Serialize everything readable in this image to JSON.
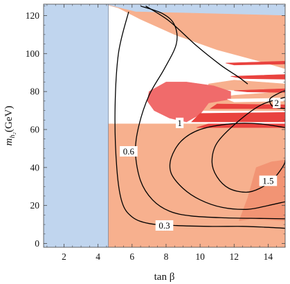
{
  "chart_data": {
    "type": "contour",
    "xlabel": "tan β",
    "ylabel_main": "m",
    "ylabel_sub": "h₂",
    "ylabel_unit": "(GeV)",
    "xlim": [
      0.8,
      15
    ],
    "ylim": [
      -2,
      126
    ],
    "xticks": [
      2,
      4,
      6,
      8,
      10,
      12,
      14
    ],
    "yticks": [
      0,
      20,
      40,
      60,
      80,
      100,
      120
    ],
    "grid": false,
    "colors": {
      "excluded_blue": "#c0d5ee",
      "salmon": "#f7b08e",
      "salmon_dark": "#f29474",
      "red_light": "#f06b6b",
      "red": "#e9433f",
      "contour": "#000000"
    },
    "regions": [
      {
        "id": "blue-left",
        "fill": "excluded_blue",
        "polygon": [
          [
            0.8,
            -2
          ],
          [
            4.6,
            -2
          ],
          [
            4.6,
            126
          ],
          [
            0.8,
            126
          ]
        ]
      },
      {
        "id": "blue-top",
        "fill": "excluded_blue",
        "polygon": [
          [
            4.6,
            126
          ],
          [
            15,
            126
          ],
          [
            15,
            120
          ],
          [
            6.2,
            122
          ],
          [
            4.6,
            125.5
          ]
        ]
      },
      {
        "id": "salmon-lower",
        "fill": "salmon",
        "polygon": [
          [
            4.6,
            -2
          ],
          [
            15,
            -2
          ],
          [
            15,
            63
          ],
          [
            4.6,
            63
          ]
        ]
      },
      {
        "id": "salmon-upper",
        "fill": "salmon",
        "polygon": [
          [
            4.6,
            125.5
          ],
          [
            5.2,
            124
          ],
          [
            6.5,
            118
          ],
          [
            8.5,
            110
          ],
          [
            11,
            102
          ],
          [
            13.5,
            96
          ],
          [
            15,
            92
          ],
          [
            15,
            120
          ],
          [
            6.2,
            122
          ]
        ]
      },
      {
        "id": "salmon-upper-mid",
        "fill": "salmon",
        "polygon": [
          [
            10.5,
            84
          ],
          [
            12,
            86
          ],
          [
            13.5,
            85
          ],
          [
            15,
            84
          ],
          [
            15,
            80
          ],
          [
            13,
            80
          ],
          [
            11.5,
            81
          ],
          [
            10.5,
            82.5
          ]
        ]
      },
      {
        "id": "salmon-right-band",
        "fill": "salmon",
        "polygon": [
          [
            9.5,
            70
          ],
          [
            15,
            70
          ],
          [
            15,
            80
          ],
          [
            13.5,
            79
          ],
          [
            12,
            78
          ],
          [
            10.5,
            76
          ],
          [
            9.5,
            73
          ]
        ]
      },
      {
        "id": "salmon-dark-lower-right",
        "fill": "salmon_dark",
        "polygon": [
          [
            12.3,
            12
          ],
          [
            12.8,
            24
          ],
          [
            13.3,
            40
          ],
          [
            14.2,
            43
          ],
          [
            15,
            44
          ],
          [
            15,
            12
          ],
          [
            13,
            13
          ]
        ]
      },
      {
        "id": "red-blob-mid",
        "fill": "red_light",
        "polygon": [
          [
            7.0,
            80
          ],
          [
            8.0,
            85
          ],
          [
            9.2,
            85
          ],
          [
            10.8,
            83
          ],
          [
            11.8,
            80
          ],
          [
            11.8,
            76
          ],
          [
            10.5,
            74
          ],
          [
            10.0,
            68
          ],
          [
            9.2,
            64
          ],
          [
            8.2,
            66
          ],
          [
            7.3,
            70
          ],
          [
            6.9,
            75
          ]
        ]
      },
      {
        "id": "red-band-1",
        "fill": "red",
        "polygon": [
          [
            10.6,
            71
          ],
          [
            15,
            71
          ],
          [
            15,
            73
          ],
          [
            11,
            73.5
          ]
        ]
      },
      {
        "id": "red-band-2",
        "fill": "red",
        "polygon": [
          [
            9.5,
            64
          ],
          [
            15,
            64
          ],
          [
            15,
            69
          ],
          [
            10,
            68.5
          ]
        ]
      },
      {
        "id": "red-band-3",
        "fill": "red",
        "polygon": [
          [
            11.5,
            95
          ],
          [
            15,
            96
          ],
          [
            15,
            94.5
          ],
          [
            12,
            94
          ]
        ]
      },
      {
        "id": "red-band-4",
        "fill": "red",
        "polygon": [
          [
            11.8,
            88
          ],
          [
            15,
            89
          ],
          [
            15,
            86.5
          ],
          [
            12.5,
            86.8
          ]
        ]
      },
      {
        "id": "red-band-5",
        "fill": "red",
        "polygon": [
          [
            12,
            80.5
          ],
          [
            15,
            81.5
          ],
          [
            15,
            79.5
          ],
          [
            12.8,
            79.8
          ]
        ]
      },
      {
        "id": "red-band-6",
        "fill": "red",
        "polygon": [
          [
            9.8,
            61
          ],
          [
            15,
            61
          ],
          [
            15,
            63
          ],
          [
            10.5,
            63
          ]
        ]
      },
      {
        "id": "white-gap-1",
        "fill": "white",
        "polygon": [
          [
            11.6,
            76
          ],
          [
            15,
            76.5
          ],
          [
            15,
            75
          ],
          [
            12,
            74.5
          ]
        ]
      }
    ],
    "contours": [
      {
        "level": "0.3",
        "points": [
          [
            5.8,
            122
          ],
          [
            5.2,
            100
          ],
          [
            5.0,
            70
          ],
          [
            5.1,
            40
          ],
          [
            5.4,
            22
          ],
          [
            6.0,
            14
          ],
          [
            7.0,
            10.5
          ],
          [
            8.5,
            9.5
          ],
          [
            10.5,
            9
          ],
          [
            12.5,
            9
          ],
          [
            14.0,
            8.5
          ],
          [
            15,
            8
          ]
        ]
      },
      {
        "level": "0.6",
        "points": [
          [
            6.5,
            125
          ],
          [
            7.8,
            121
          ],
          [
            8.5,
            115
          ],
          [
            8.6,
            105
          ],
          [
            7.9,
            92
          ],
          [
            7.0,
            78
          ],
          [
            6.4,
            62
          ],
          [
            6.2,
            48
          ],
          [
            6.5,
            33
          ],
          [
            7.2,
            23
          ],
          [
            8.2,
            17
          ],
          [
            9.5,
            14.5
          ],
          [
            11.5,
            13.5
          ],
          [
            13.5,
            13.2
          ],
          [
            15,
            13
          ]
        ]
      },
      {
        "level": "1",
        "points": [
          [
            6.8,
            125
          ],
          [
            8.2,
            117
          ],
          [
            9.8,
            104
          ],
          [
            11.2,
            94
          ],
          [
            12.2,
            88
          ],
          [
            12.8,
            84
          ]
        ],
        "points2": [
          [
            15,
            61
          ],
          [
            13.5,
            63
          ],
          [
            11.8,
            63
          ],
          [
            10.0,
            60
          ],
          [
            8.9,
            54
          ],
          [
            8.3,
            45
          ],
          [
            8.3,
            37
          ],
          [
            9.0,
            29
          ],
          [
            10.0,
            23
          ],
          [
            11.3,
            19
          ],
          [
            12.8,
            18
          ],
          [
            14.0,
            20
          ],
          [
            15,
            22
          ]
        ]
      },
      {
        "level": "1.5",
        "points": [
          [
            15,
            77
          ],
          [
            13.6,
            73
          ],
          [
            12.2,
            64
          ],
          [
            11.0,
            53
          ],
          [
            10.7,
            43
          ],
          [
            11.0,
            35
          ],
          [
            11.7,
            29
          ],
          [
            12.7,
            27
          ],
          [
            13.5,
            29
          ],
          [
            14.3,
            34
          ],
          [
            14.9,
            41
          ],
          [
            15,
            44
          ]
        ]
      },
      {
        "level": "2",
        "points": [
          [
            15,
            80.5
          ],
          [
            14.6,
            79
          ],
          [
            14.1,
            76
          ],
          [
            14.3,
            72
          ],
          [
            15,
            71
          ]
        ]
      }
    ],
    "contour_labels": [
      {
        "text": "0.3",
        "x": 7.9,
        "y": 9.5
      },
      {
        "text": "0.6",
        "x": 5.8,
        "y": 48.5
      },
      {
        "text": "1",
        "x": 8.8,
        "y": 63.5
      },
      {
        "text": "1.5",
        "x": 14.0,
        "y": 33
      },
      {
        "text": "2",
        "x": 14.5,
        "y": 74
      }
    ]
  }
}
